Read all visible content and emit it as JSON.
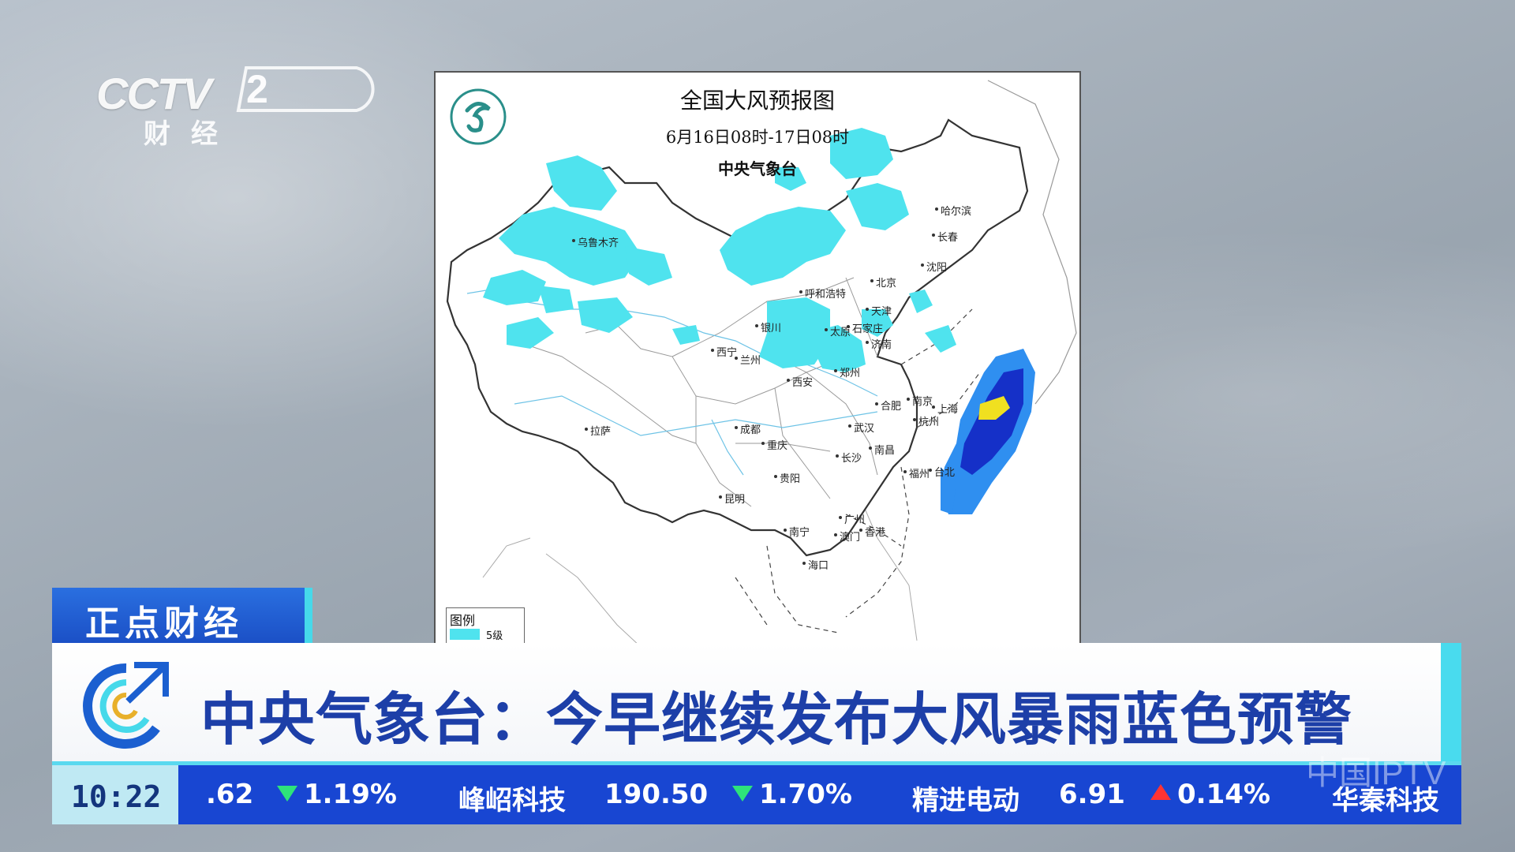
{
  "channel": {
    "logo_text": "CCTV",
    "number": "2",
    "subtitle": "财经"
  },
  "map": {
    "title": "全国大风预报图",
    "date_range": "6月16日08时-17日08时",
    "issuer": "中央气象台",
    "legend_title": "图例",
    "legend_level": "5级",
    "colors": {
      "level5": "#4fe3ee",
      "level6": "#2f8ff0",
      "level7": "#1530c8",
      "level8": "#f0e020"
    },
    "cities": {
      "urumqi": "乌鲁木齐",
      "harbin": "哈尔滨",
      "changchun": "长春",
      "shenyang": "沈阳",
      "beijing": "北京",
      "tianjin": "天津",
      "hohhot": "呼和浩特",
      "shijiazhuang": "石家庄",
      "taiyuan": "太原",
      "jinan": "济南",
      "yinchuan": "银川",
      "xining": "西宁",
      "lanzhou": "兰州",
      "zhengzhou": "郑州",
      "xian": "西安",
      "hefei": "合肥",
      "nanjing": "南京",
      "shanghai": "上海",
      "hangzhou": "杭州",
      "lhasa": "拉萨",
      "chengdu": "成都",
      "wuhan": "武汉",
      "chongqing": "重庆",
      "nanchang": "南昌",
      "changsha": "长沙",
      "fuzhou": "福州",
      "taibei": "台北",
      "guiyang": "贵阳",
      "kunming": "昆明",
      "nanning": "南宁",
      "guangzhou": "广州",
      "aomen": "澳门",
      "xianggang": "香港",
      "haikou": "海口"
    }
  },
  "program": {
    "name": "正点财经"
  },
  "headline": {
    "text": "中央气象台：今早继续发布大风暴雨蓝色预警"
  },
  "ticker": {
    "time": "10:22",
    "items": [
      {
        "name": "",
        "price": ".62",
        "dir": "down",
        "change": "1.19%"
      },
      {
        "name": "峰岹科技",
        "price": "190.50",
        "dir": "down",
        "change": "1.70%"
      },
      {
        "name": "精进电动",
        "price": "6.91",
        "dir": "up",
        "change": "0.14%"
      },
      {
        "name": "华秦科技",
        "price": "",
        "dir": "",
        "change": ""
      }
    ]
  },
  "watermark": "中国IPTV"
}
